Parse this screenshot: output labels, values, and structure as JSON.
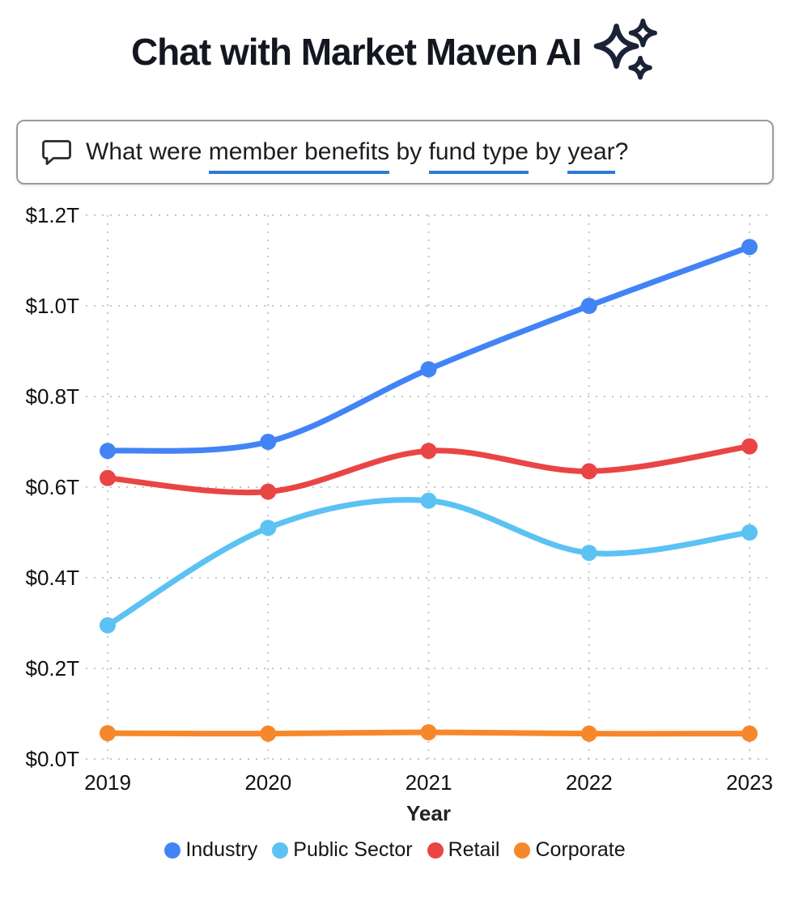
{
  "header": {
    "title": "Chat with Market Maven AI",
    "icon": "sparkles-icon",
    "title_color": "#14171f",
    "icon_color": "#1b2336"
  },
  "chat": {
    "icon": "speech-bubble-icon",
    "question_full": "What were member benefits by fund type by year?",
    "question_segments": [
      {
        "text": "What were ",
        "underline": false
      },
      {
        "text": "member benefits",
        "underline": true
      },
      {
        "text": " by ",
        "underline": false
      },
      {
        "text": "fund type",
        "underline": true
      },
      {
        "text": " by ",
        "underline": false
      },
      {
        "text": "year",
        "underline": true
      },
      {
        "text": "?",
        "underline": false
      }
    ],
    "underline_color": "#2b7cd3"
  },
  "chart_data": {
    "type": "line",
    "x": [
      "2019",
      "2020",
      "2021",
      "2022",
      "2023"
    ],
    "series": [
      {
        "name": "Industry",
        "color": "#4284f5",
        "values": [
          0.68,
          0.7,
          0.86,
          1.0,
          1.13
        ]
      },
      {
        "name": "Public Sector",
        "color": "#5bc2f3",
        "values": [
          0.295,
          0.51,
          0.57,
          0.455,
          0.5
        ]
      },
      {
        "name": "Retail",
        "color": "#e94545",
        "values": [
          0.62,
          0.59,
          0.68,
          0.635,
          0.69
        ]
      },
      {
        "name": "Corporate",
        "color": "#f6882b",
        "values": [
          0.057,
          0.056,
          0.059,
          0.056,
          0.056
        ]
      }
    ],
    "title": "",
    "xlabel": "Year",
    "ylabel": "",
    "y_ticks": [
      "$0.0T",
      "$0.2T",
      "$0.4T",
      "$0.6T",
      "$0.8T",
      "$1.0T",
      "$1.2T"
    ],
    "ylim": [
      0,
      1.2
    ],
    "grid": true,
    "grid_style": "dotted",
    "grid_color": "#c5c5c5",
    "legend_position": "bottom"
  }
}
